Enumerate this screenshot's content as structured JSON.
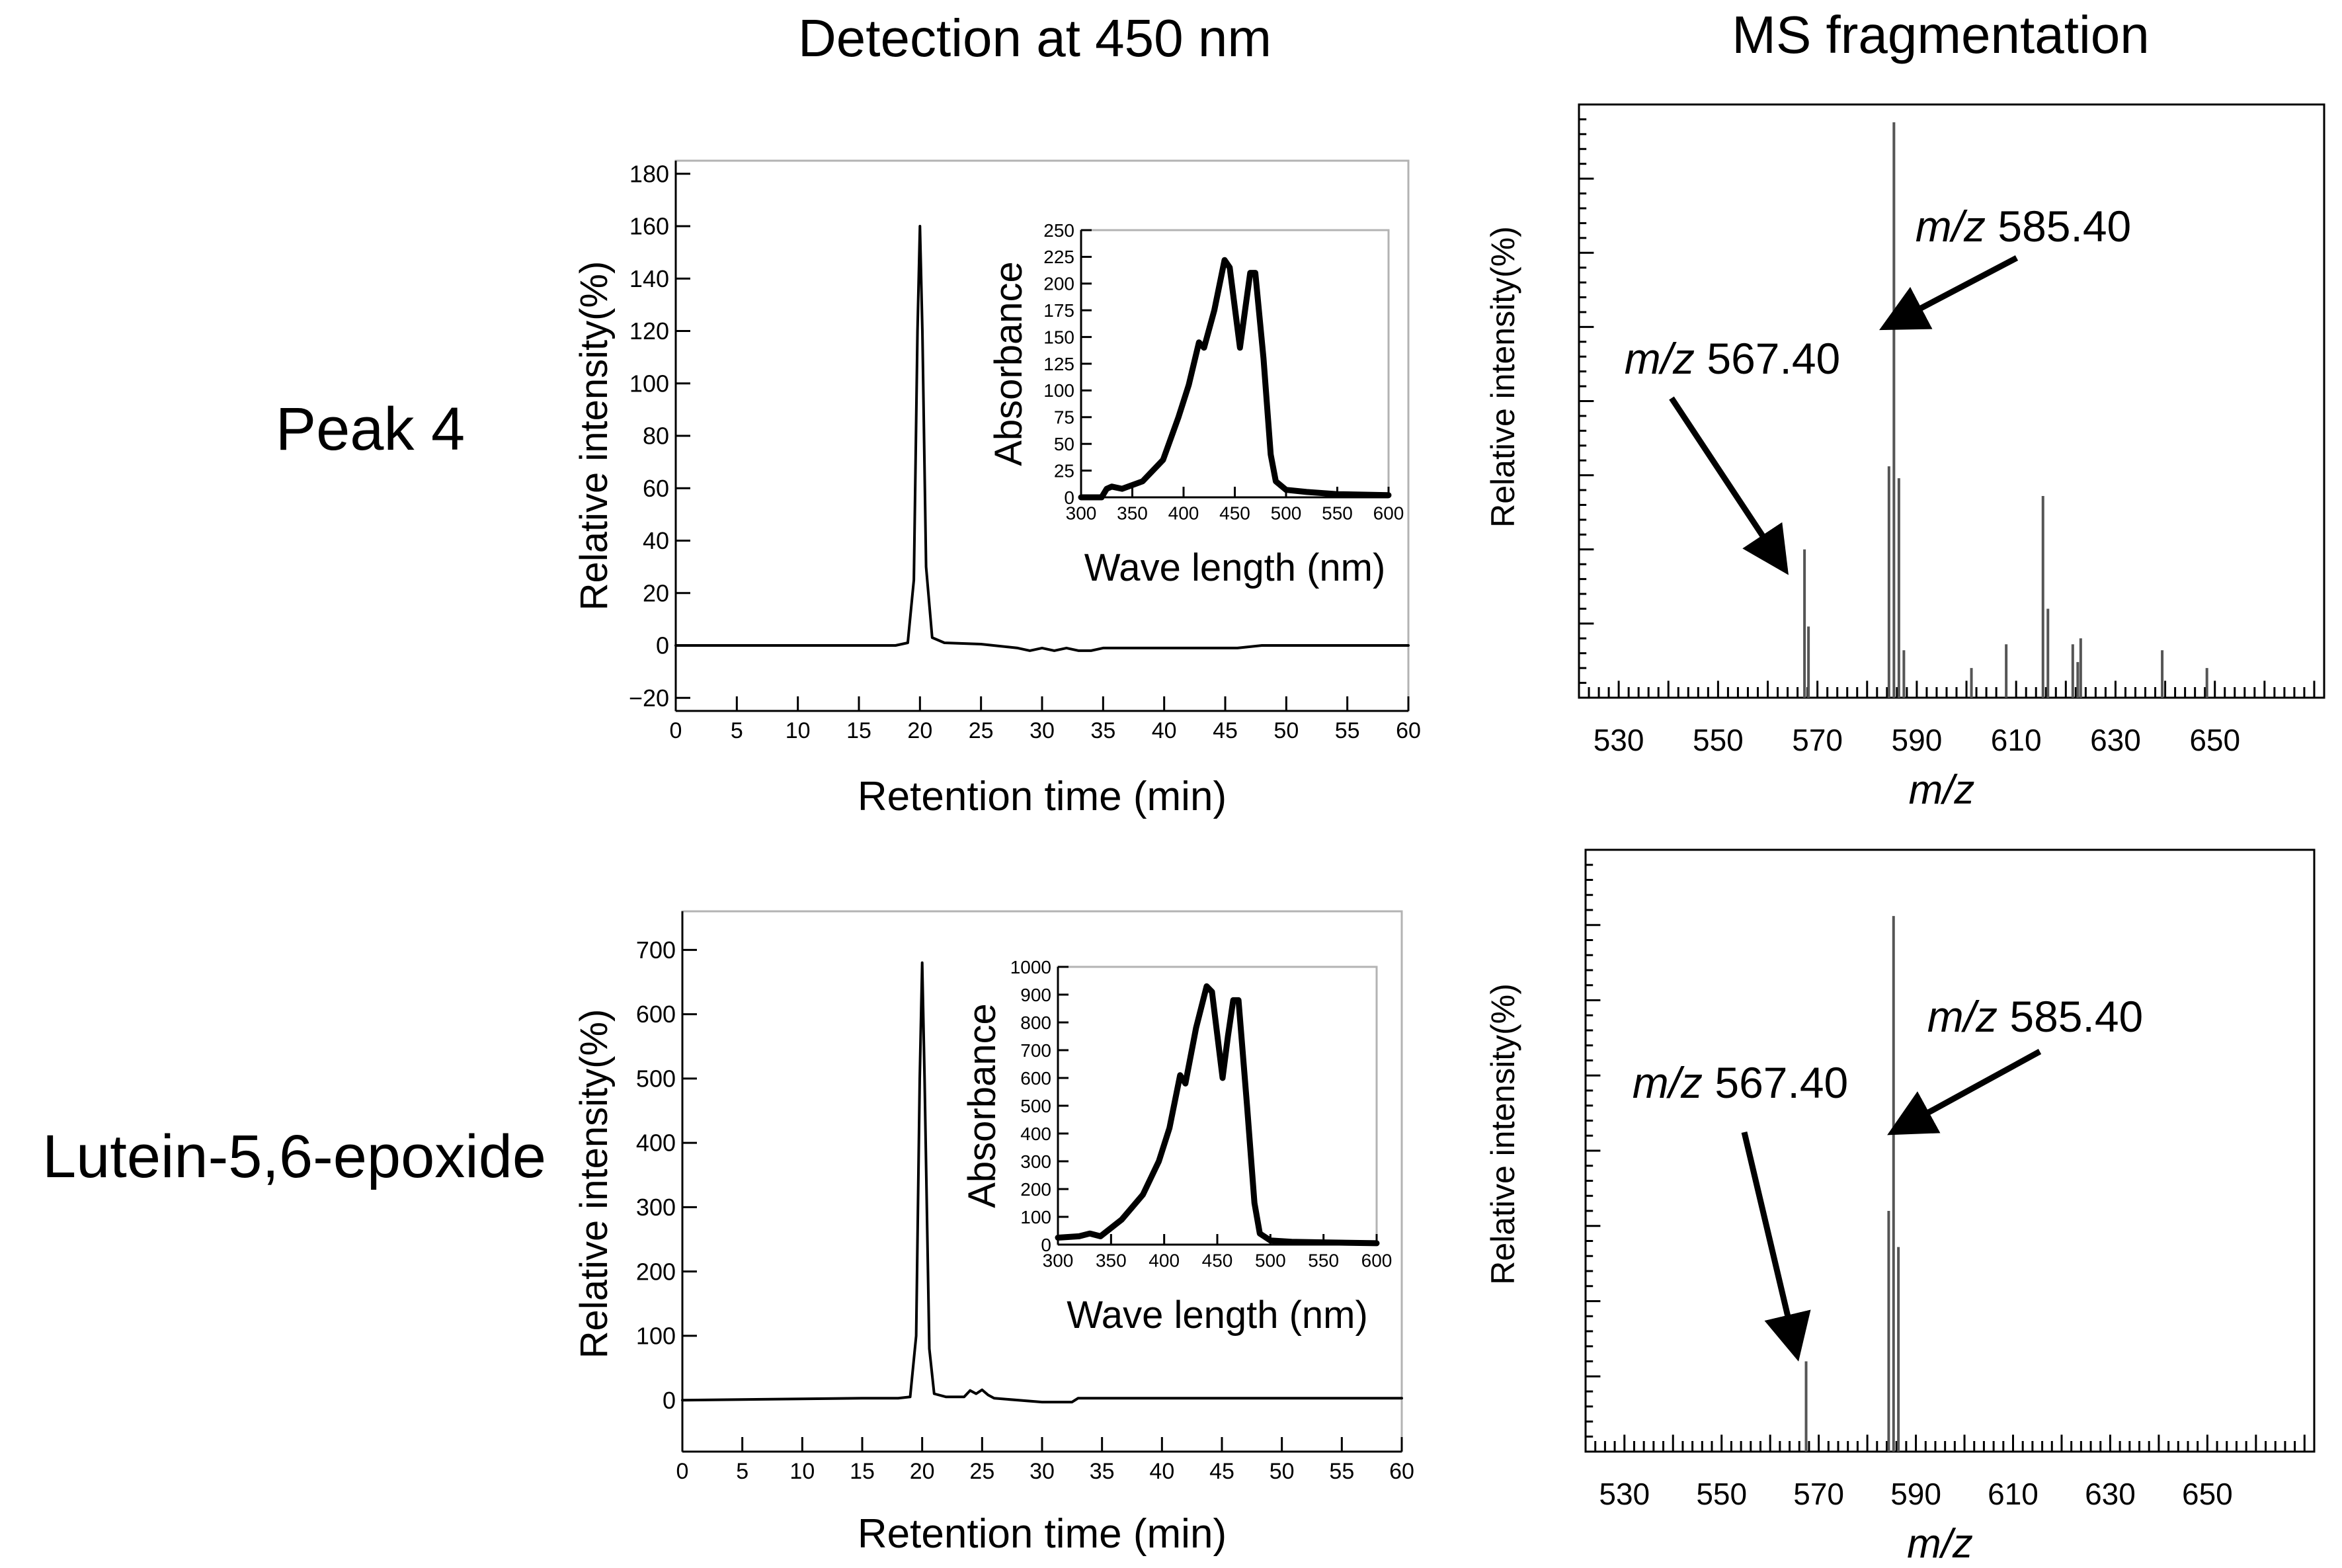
{
  "headers": {
    "col1": "Detection at 450 nm",
    "col2": "MS fragmentation"
  },
  "row_labels": {
    "row1": "Peak 4",
    "row2": "Lutein-5,6-epoxide"
  },
  "chart_data": [
    {
      "id": "chrom1",
      "type": "line",
      "title": "",
      "xlabel": "Retention time (min)",
      "ylabel": "Relative intensity(%)",
      "xlim": [
        0,
        60
      ],
      "ylim": [
        -25,
        185
      ],
      "xticks": [
        0,
        5,
        10,
        15,
        20,
        25,
        30,
        35,
        40,
        45,
        50,
        55,
        60
      ],
      "yticks": [
        -20,
        0,
        20,
        40,
        60,
        80,
        100,
        120,
        140,
        160,
        180
      ],
      "ytick_labels": [
        "−20",
        "0",
        "20",
        "40",
        "60",
        "80",
        "100",
        "120",
        "140",
        "160",
        "180"
      ],
      "series": [
        {
          "name": "chromatogram",
          "x": [
            0,
            5,
            10,
            15,
            18,
            19,
            19.5,
            19.8,
            20,
            20.2,
            20.5,
            21,
            22,
            25,
            28,
            29,
            30,
            31,
            32,
            33,
            34,
            35,
            38,
            42,
            46,
            48,
            50,
            55,
            60
          ],
          "y": [
            0,
            0,
            0,
            0,
            0,
            1,
            25,
            120,
            160,
            120,
            30,
            3,
            1,
            0.5,
            -1,
            -2,
            -1,
            -2,
            -1,
            -2,
            -2,
            -1,
            -1,
            -1,
            -1,
            0,
            0,
            0,
            0
          ]
        }
      ]
    },
    {
      "id": "abs1",
      "type": "line",
      "title": "",
      "xlabel": "Wave length (nm)",
      "ylabel": "Absorbance",
      "xlim": [
        300,
        600
      ],
      "ylim": [
        0,
        250
      ],
      "xticks": [
        300,
        350,
        400,
        450,
        500,
        550,
        600
      ],
      "yticks": [
        0,
        25,
        50,
        75,
        100,
        125,
        150,
        175,
        200,
        225,
        250
      ],
      "series": [
        {
          "name": "absorbance",
          "x": [
            300,
            320,
            325,
            330,
            340,
            360,
            380,
            395,
            405,
            415,
            420,
            430,
            440,
            445,
            455,
            460,
            465,
            470,
            478,
            485,
            490,
            500,
            520,
            550,
            600
          ],
          "y": [
            0,
            0,
            8,
            10,
            8,
            15,
            35,
            75,
            105,
            145,
            140,
            175,
            222,
            215,
            140,
            175,
            210,
            210,
            130,
            40,
            15,
            7,
            5,
            3,
            2
          ]
        }
      ]
    },
    {
      "id": "ms1",
      "type": "bar",
      "title": "",
      "xlabel": "m/z",
      "ylabel": "Relative intensity(%)",
      "xlim": [
        522,
        672
      ],
      "ylim": [
        0,
        100
      ],
      "xticks": [
        530,
        550,
        570,
        590,
        610,
        630,
        650
      ],
      "series": [
        {
          "name": "spectrum",
          "x": [
            567.4,
            568.2,
            584.4,
            585.4,
            586.4,
            587.4,
            601,
            608,
            615.4,
            616.4,
            621.4,
            622.4,
            623,
            639.4,
            648.4
          ],
          "y": [
            25,
            12,
            39,
            97,
            37,
            8,
            5,
            9,
            34,
            15,
            9,
            6,
            10,
            8,
            5
          ]
        }
      ],
      "annotations": [
        {
          "text_italic": "m/z",
          "text_value": "567.40",
          "target_x": 567.4
        },
        {
          "text_italic": "m/z",
          "text_value": "585.40",
          "target_x": 585.4
        }
      ]
    },
    {
      "id": "chrom2",
      "type": "line",
      "title": "",
      "xlabel": "Retention time (min)",
      "ylabel": "Relative intensity(%)",
      "xlim": [
        0,
        60
      ],
      "ylim": [
        -80,
        760
      ],
      "xticks": [
        0,
        5,
        10,
        15,
        20,
        25,
        30,
        35,
        40,
        45,
        50,
        55,
        60
      ],
      "yticks": [
        0,
        100,
        200,
        300,
        400,
        500,
        600,
        700
      ],
      "ytick_labels": [
        "0",
        "100",
        "200",
        "300",
        "400",
        "500",
        "600",
        "700"
      ],
      "series": [
        {
          "name": "chromatogram",
          "x": [
            0,
            5,
            10,
            15,
            18,
            19,
            19.5,
            19.8,
            20,
            20.2,
            20.6,
            21,
            22,
            23.5,
            24,
            24.5,
            25,
            25.5,
            26,
            30,
            32.5,
            33,
            40,
            50,
            60
          ],
          "y": [
            0,
            1,
            2,
            3,
            3,
            5,
            100,
            500,
            680,
            500,
            80,
            10,
            5,
            5,
            15,
            10,
            16,
            8,
            3,
            -3,
            -3,
            3,
            3,
            3,
            3
          ]
        }
      ]
    },
    {
      "id": "abs2",
      "type": "line",
      "title": "",
      "xlabel": "Wave length (nm)",
      "ylabel": "Absorbance",
      "xlim": [
        300,
        600
      ],
      "ylim": [
        0,
        1000
      ],
      "xticks": [
        300,
        350,
        400,
        450,
        500,
        550,
        600
      ],
      "yticks": [
        0,
        100,
        200,
        300,
        400,
        500,
        600,
        700,
        800,
        900,
        1000
      ],
      "series": [
        {
          "name": "absorbance",
          "x": [
            300,
            320,
            330,
            340,
            360,
            380,
            395,
            405,
            415,
            420,
            430,
            440,
            445,
            455,
            460,
            465,
            470,
            478,
            485,
            490,
            500,
            520,
            550,
            600
          ],
          "y": [
            25,
            30,
            40,
            30,
            90,
            180,
            300,
            420,
            610,
            580,
            780,
            930,
            910,
            600,
            750,
            880,
            880,
            500,
            150,
            40,
            15,
            10,
            8,
            5
          ]
        }
      ]
    },
    {
      "id": "ms2",
      "type": "bar",
      "title": "",
      "xlabel": "m/z",
      "ylabel": "Relative intensity(%)",
      "xlim": [
        522,
        672
      ],
      "ylim": [
        0,
        100
      ],
      "xticks": [
        530,
        550,
        570,
        590,
        610,
        630,
        650
      ],
      "series": [
        {
          "name": "spectrum",
          "x": [
            567.4,
            584.4,
            585.4,
            586.4
          ],
          "y": [
            15,
            40,
            89,
            34
          ]
        }
      ],
      "annotations": [
        {
          "text_italic": "m/z",
          "text_value": "567.40",
          "target_x": 567.4
        },
        {
          "text_italic": "m/z",
          "text_value": "585.40",
          "target_x": 585.4
        }
      ]
    }
  ]
}
